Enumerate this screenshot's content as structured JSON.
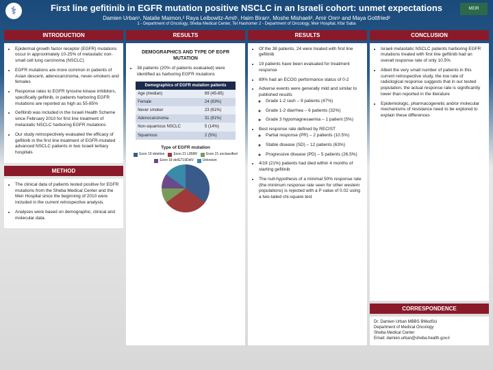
{
  "header": {
    "title": "First line gefitinib in EGFR mutation positive NSCLC in an Israeli cohort: unmet expectations",
    "authors": "Damien Urban¹, Natalie Maimon,² Raya Leibowitz-Amit¹, Haim Biran¹, Moshe Mishaeli², Amir Onn¹ and Maya Gottfried²",
    "affil": "1 - Department of Oncology, Sheba Medical Center, Tel Hashomer  2 - Department of Oncology, Meir Hospital, Kfar Saba"
  },
  "sections": {
    "intro_h": "INTRODUCTION",
    "method_h": "METHOD",
    "results_h": "RESULTS",
    "conclusion_h": "CONCLUSION",
    "corr_h": "CORRESPONDENCE"
  },
  "intro": [
    "Epidermal growth factor receptor (EGFR) mutations occur in approximately 10-25% of metastatic non-small cell lung carcinoma (NSCLC)",
    "EGFR mutations are more common in patients of Asian descent, adenocarcinoma, never-smokers and females",
    "Response rates to EGFR tyrosine kinase inhibitors, specifically gefitinib, in patients harboring EGFR mutations are reported as high as 55-85%",
    "Gefitinib was included in the Israeli Health Scheme since February 2010 for first line treatment of metastatic NSCLC harboring EGFR mutations",
    "Our study retrospectively evaluated the efficacy of gefitinib in the first line treatment of EGFR-mutated advanced NSCLC patients in two Israeli tertiary hospitals"
  ],
  "method": [
    "The clinical data of patients tested positive for EGFR mutations from the Sheba Medical Center and the Meir Hospital since the beginning of 2010 were included in the current retrospective analysis.",
    "Analyses were based on demographic, clinical and molecular data."
  ],
  "results1": {
    "subhead": "DEMOGRAPHICS AND TYPE OF EGFR MUTATION",
    "line1": "38 patients (20% of patients evaluated) were identified as harboring EGFR mutations",
    "table_title": "Demographics of EGFR mutation patients",
    "table_rows": [
      [
        "Age (median)",
        "69 (45-85)"
      ],
      [
        "Female",
        "24 (63%)"
      ],
      [
        "Never smoker",
        "23 (61%)"
      ],
      [
        "Adenocarcinoma",
        "31 (81%)"
      ],
      [
        "Non-squamous NSCLC",
        "5 (14%)"
      ],
      [
        "Squamous",
        "2 (5%)"
      ]
    ]
  },
  "chart": {
    "title": "Type of EGFR mutation",
    "series": [
      {
        "label": "Exon 19 deletion",
        "color": "#3a5a8a",
        "pct": 35
      },
      {
        "label": "Exon 21 L858R",
        "color": "#a03a3a",
        "pct": 30
      },
      {
        "label": "Exon 21 unclassified",
        "color": "#7a9a5a",
        "pct": 10
      },
      {
        "label": "Exon 18 delG719DdiV",
        "color": "#6a4a8a",
        "pct": 10
      },
      {
        "label": "Unknown",
        "color": "#3a8aaa",
        "pct": 15
      }
    ]
  },
  "results2": [
    "Of the 38 patients, 24 were treated with first line gefitinib",
    "19 patients have been evaluated for treatment response",
    "89% had an ECOG performance status of 0-2",
    "Adverse events were generally mild and similar to published results",
    [
      "Grade 1-2 rash – 9 patients (47%)",
      "Grade 1-2 diarrhea – 6 patients (32%)",
      "Grade 3 hypomagnesaemia – 1 patient (5%)"
    ],
    "Best response rate defined by RECIST",
    [
      "Partial response (PR) – 2 patients (10.5%)",
      "Stable disease (SD) – 12 patients (63%)",
      "Progressive disease (PD) – 5 patients (26.5%)"
    ],
    "4/19 (21%) patients had died within 4 months of starting gefitinib",
    "The null-hypothesis of a minimal 50% response rate (the minimum response rate seen for other western populations) is rejected with a P value of 0.02 using a two-tailed chi-square test"
  ],
  "conclusion": [
    "Israeli metastatic NSCLC patients harboring EGFR mutations treated with first line gefitinib had an overall response rate of only 10.5%",
    "Albeit the very small number of patients in this current retrospective study, the low rate of radiological response suggests that in our tested population, the actual response rate is significantly lower than reported in the literature",
    "Epidemiologic, pharmacogenetic and/or molecular mechanisms of resistance need to be explored to explain these differences"
  ],
  "corr": {
    "l1": "Dr. Damien Urban MBBS BMedSci",
    "l2": "Department of Medical Oncology",
    "l3": "Sheba Medical Center",
    "l4": "Email: damien.urban@sheba.health.gov.il"
  }
}
